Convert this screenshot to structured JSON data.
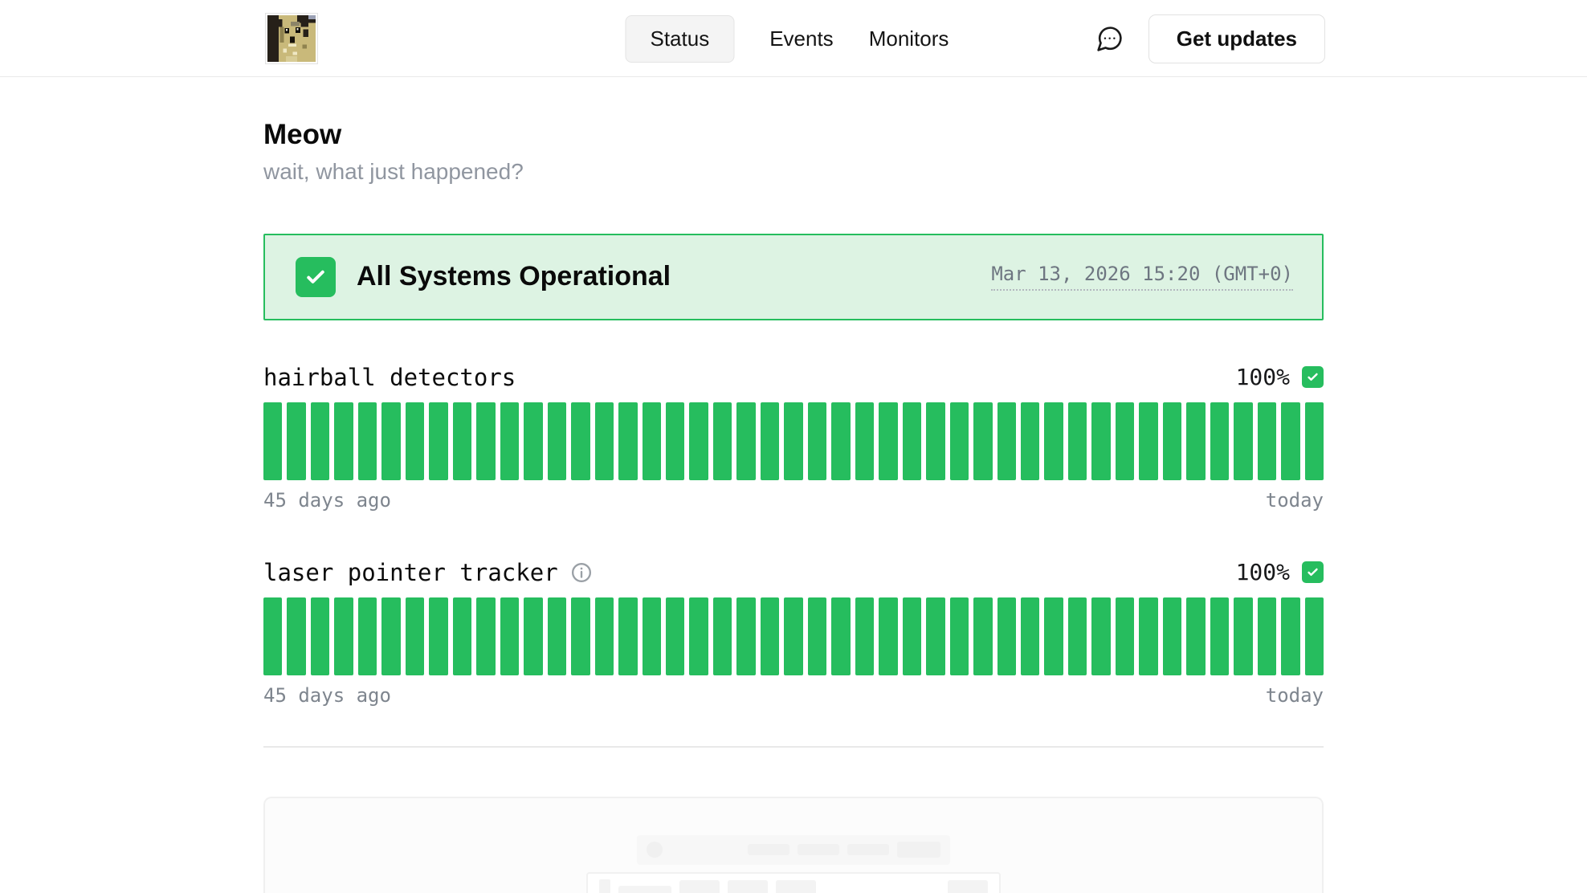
{
  "header": {
    "logo_icon": "surprised-cat-pixel-logo",
    "nav": [
      {
        "label": "Status",
        "active": true
      },
      {
        "label": "Events",
        "active": false
      },
      {
        "label": "Monitors",
        "active": false
      }
    ],
    "chat_icon": "speech-bubble-dots-icon",
    "get_updates_label": "Get updates"
  },
  "page": {
    "title": "Meow",
    "subtitle": "wait, what just happened?"
  },
  "status_banner": {
    "icon": "check-icon",
    "label": "All Systems Operational",
    "timestamp": "Mar 13, 2026 15:20 (GMT+0)"
  },
  "monitors": [
    {
      "name": "hairball detectors",
      "uptime": "100%",
      "status_icon": "check-icon",
      "bar_count": 45,
      "all_operational": true,
      "start_label": "45 days ago",
      "end_label": "today"
    },
    {
      "name": "laser pointer tracker",
      "uptime": "100%",
      "status_icon": "check-icon",
      "info_icon": "info-circle-icon",
      "bar_count": 45,
      "all_operational": true,
      "start_label": "45 days ago",
      "end_label": "today"
    }
  ],
  "colors": {
    "accent_green": "#26bd5e",
    "banner_background": "#ddf3e3",
    "muted_text": "#7e858e"
  }
}
